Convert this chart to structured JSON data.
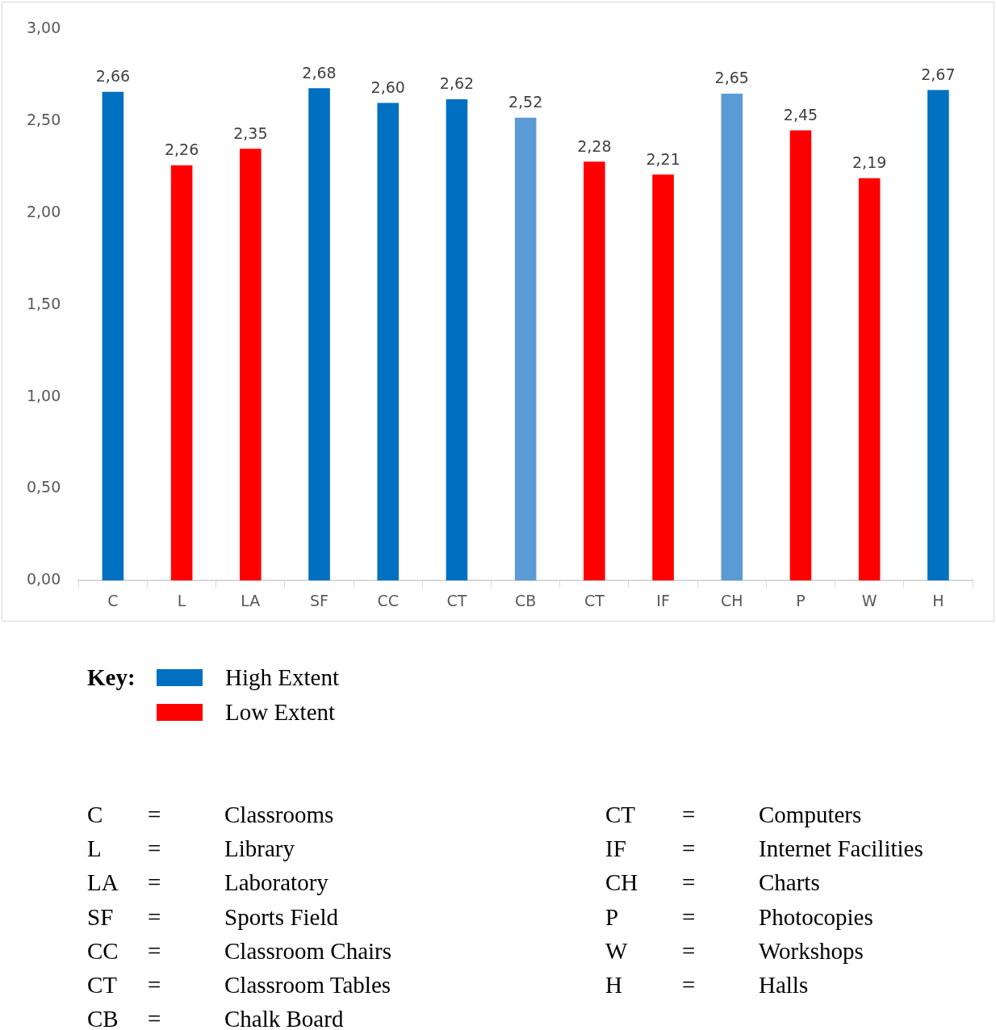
{
  "chart_data": {
    "type": "bar",
    "categories": [
      "C",
      "L",
      "LA",
      "SF",
      "CC",
      "CT",
      "CB",
      "CT",
      "IF",
      "CH",
      "P",
      "W",
      "H"
    ],
    "series": [
      {
        "name": "High Extent",
        "color": "#0070c0",
        "values": [
          2.66,
          null,
          null,
          2.68,
          2.6,
          2.62,
          null,
          null,
          null,
          null,
          null,
          null,
          2.67
        ],
        "value_labels": [
          "2,66",
          null,
          null,
          "2,68",
          "2,60",
          "2,62",
          null,
          null,
          null,
          null,
          null,
          null,
          "2,67"
        ]
      },
      {
        "name": "Low Extent",
        "color": "#ff0000",
        "values": [
          null,
          2.26,
          2.35,
          null,
          null,
          null,
          null,
          2.28,
          2.21,
          null,
          2.45,
          2.19,
          null
        ],
        "value_labels": [
          null,
          "2,26",
          "2,35",
          null,
          null,
          null,
          null,
          "2,28",
          "2,21",
          null,
          "2,45",
          "2,19",
          null
        ]
      },
      {
        "color": "#5b9bd5",
        "values": [
          null,
          null,
          null,
          null,
          null,
          null,
          2.52,
          null,
          null,
          2.65,
          null,
          null,
          null
        ],
        "value_labels": [
          null,
          null,
          null,
          null,
          null,
          null,
          "2,52",
          null,
          null,
          "2,65",
          null,
          null,
          null
        ]
      }
    ],
    "ylim": [
      0,
      3
    ],
    "yticks": [
      {
        "value": 0,
        "label": "0,00"
      },
      {
        "value": 0.5,
        "label": "0,50"
      },
      {
        "value": 1,
        "label": "1,00"
      },
      {
        "value": 1.5,
        "label": "1,50"
      },
      {
        "value": 2,
        "label": "2,00"
      },
      {
        "value": 2.5,
        "label": "2,50"
      },
      {
        "value": 3,
        "label": "3,00"
      }
    ],
    "grid": false,
    "legend": "bottom left",
    "legend_title": "Key:",
    "annotations": [
      "C = Classrooms",
      "L = Library",
      "LA = Laboratory",
      "SF = Sports Field",
      "CC = Classroom Chairs",
      "CT = Classroom Tables",
      "CB = Chalk Board",
      "CT = Computers",
      "IF = Internet Facilities",
      "CH = Charts",
      "P = Photocopies",
      "W = Workshops",
      "H = Halls"
    ]
  }
}
